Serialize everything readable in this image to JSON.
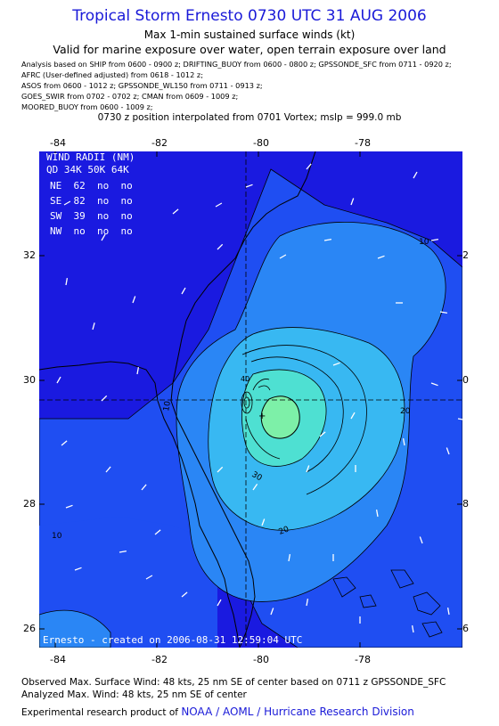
{
  "title": "Tropical Storm Ernesto 0730 UTC 31 AUG 2006",
  "subtitle": "Max 1-min sustained surface winds (kt)",
  "valid_note": "Valid for marine exposure over water, open terrain exposure over land",
  "analysis_lines": [
    "Analysis based on  SHIP from 0600 - 0900 z;  DRIFTING_BUOY from 0600 - 0800 z;  GPSSONDE_SFC from 0711 - 0920 z;",
    "AFRC (User-defined adjusted) from 0618 - 1012 z;",
    "ASOS from 0600 - 1012 z;  GPSSONDE_WL150 from 0711 - 0913 z;",
    "GOES_SWIR from 0702 - 0702 z;  CMAN from 0609 - 1009 z;",
    "MOORED_BUOY from 0600 - 1009 z;"
  ],
  "position_note": "0730 z position interpolated from 0701 Vortex; mslp = 999.0 mb",
  "axes": {
    "lon_ticks": [
      "-84",
      "-82",
      "-80",
      "-78"
    ],
    "lat_ticks": [
      "32",
      "30",
      "28",
      "26"
    ]
  },
  "wind_radii": {
    "header": "WIND RADII (NM)",
    "columns": "QD 34K 50K 64K",
    "rows": [
      "NE  62  no  no",
      "SE  82  no  no",
      "SW  39  no  no",
      "NW  no  no  no"
    ]
  },
  "contour_labels": [
    "10",
    "20",
    "30",
    "20",
    "10",
    "10",
    "40",
    "20"
  ],
  "created_note": "Ernesto - created on 2006-08-31 12:59:04 UTC",
  "footer": {
    "observed": "Observed Max. Surface Wind: 48 kts, 25 nm SE of center based on 0711 z GPSSONDE_SFC",
    "analyzed": "Analyzed Max. Wind: 48 kts, 25 nm SE of center",
    "product_prefix": "Experimental research product of",
    "org": "NOAA / AOML / Hurricane Research Division"
  },
  "colors": {
    "ocean_deep": "#1a1ae0",
    "band_10": "#1f4ef2",
    "band_20": "#2a86f5",
    "band_30": "#38b8f2",
    "band_40": "#4ee0d2",
    "core": "#7df0a8",
    "title_blue": "#1a1ad8"
  }
}
